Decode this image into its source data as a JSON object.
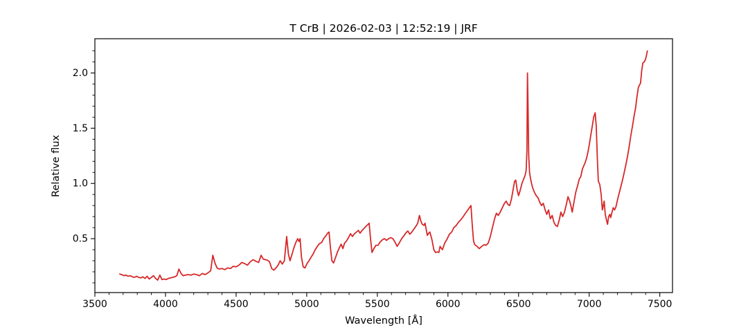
{
  "figure": {
    "background": "#ffffff",
    "spine_color": "#000000",
    "tick_color": "#000000",
    "text_color": "#000000"
  },
  "chart_data": {
    "type": "line",
    "title": "T CrB | 2026-02-03 | 12:52:19 | JRF",
    "xlabel": "Wavelength [Å]",
    "ylabel": "Relative flux",
    "grid": false,
    "legend": null,
    "xlim": [
      3500,
      7590
    ],
    "ylim": [
      0.012,
      2.31
    ],
    "xticks": [
      3500,
      4000,
      4500,
      5000,
      5500,
      6000,
      6500,
      7000,
      7500
    ],
    "xtick_labels": [
      "3500",
      "4000",
      "4500",
      "5000",
      "5500",
      "6000",
      "6500",
      "7000",
      "7500"
    ],
    "yticks": [
      0.5,
      1.0,
      1.5,
      2.0
    ],
    "ytick_labels": [
      "0.5",
      "1.0",
      "1.5",
      "2.0"
    ],
    "x_minor_step": 100,
    "y_minor_step": 0.1,
    "series": [
      {
        "name": "T CrB spectrum",
        "color": "#d62728",
        "line_width": 1.8,
        "points": [
          [
            3676,
            0.18
          ],
          [
            3690,
            0.175
          ],
          [
            3705,
            0.165
          ],
          [
            3720,
            0.17
          ],
          [
            3735,
            0.16
          ],
          [
            3750,
            0.165
          ],
          [
            3765,
            0.155
          ],
          [
            3780,
            0.15
          ],
          [
            3795,
            0.16
          ],
          [
            3810,
            0.15
          ],
          [
            3825,
            0.145
          ],
          [
            3840,
            0.155
          ],
          [
            3855,
            0.14
          ],
          [
            3870,
            0.16
          ],
          [
            3885,
            0.135
          ],
          [
            3900,
            0.15
          ],
          [
            3915,
            0.165
          ],
          [
            3930,
            0.14
          ],
          [
            3945,
            0.125
          ],
          [
            3960,
            0.17
          ],
          [
            3975,
            0.13
          ],
          [
            3990,
            0.135
          ],
          [
            4005,
            0.13
          ],
          [
            4020,
            0.14
          ],
          [
            4035,
            0.145
          ],
          [
            4050,
            0.15
          ],
          [
            4065,
            0.155
          ],
          [
            4080,
            0.165
          ],
          [
            4095,
            0.225
          ],
          [
            4110,
            0.185
          ],
          [
            4125,
            0.165
          ],
          [
            4140,
            0.17
          ],
          [
            4160,
            0.175
          ],
          [
            4180,
            0.17
          ],
          [
            4200,
            0.18
          ],
          [
            4220,
            0.175
          ],
          [
            4240,
            0.165
          ],
          [
            4260,
            0.185
          ],
          [
            4280,
            0.175
          ],
          [
            4300,
            0.19
          ],
          [
            4320,
            0.21
          ],
          [
            4335,
            0.35
          ],
          [
            4350,
            0.28
          ],
          [
            4365,
            0.235
          ],
          [
            4380,
            0.225
          ],
          [
            4400,
            0.23
          ],
          [
            4420,
            0.22
          ],
          [
            4440,
            0.235
          ],
          [
            4460,
            0.23
          ],
          [
            4480,
            0.25
          ],
          [
            4500,
            0.245
          ],
          [
            4520,
            0.26
          ],
          [
            4540,
            0.285
          ],
          [
            4560,
            0.275
          ],
          [
            4580,
            0.26
          ],
          [
            4600,
            0.29
          ],
          [
            4620,
            0.31
          ],
          [
            4640,
            0.295
          ],
          [
            4660,
            0.285
          ],
          [
            4677,
            0.35
          ],
          [
            4692,
            0.315
          ],
          [
            4707,
            0.31
          ],
          [
            4722,
            0.305
          ],
          [
            4737,
            0.29
          ],
          [
            4752,
            0.23
          ],
          [
            4767,
            0.215
          ],
          [
            4782,
            0.235
          ],
          [
            4797,
            0.26
          ],
          [
            4812,
            0.3
          ],
          [
            4827,
            0.27
          ],
          [
            4842,
            0.3
          ],
          [
            4858,
            0.52
          ],
          [
            4870,
            0.36
          ],
          [
            4882,
            0.3
          ],
          [
            4896,
            0.36
          ],
          [
            4910,
            0.42
          ],
          [
            4924,
            0.47
          ],
          [
            4936,
            0.5
          ],
          [
            4945,
            0.475
          ],
          [
            4953,
            0.5
          ],
          [
            4963,
            0.33
          ],
          [
            4975,
            0.245
          ],
          [
            4988,
            0.235
          ],
          [
            5002,
            0.275
          ],
          [
            5016,
            0.3
          ],
          [
            5030,
            0.33
          ],
          [
            5045,
            0.36
          ],
          [
            5060,
            0.4
          ],
          [
            5075,
            0.43
          ],
          [
            5090,
            0.455
          ],
          [
            5105,
            0.465
          ],
          [
            5120,
            0.5
          ],
          [
            5135,
            0.525
          ],
          [
            5148,
            0.55
          ],
          [
            5158,
            0.56
          ],
          [
            5168,
            0.42
          ],
          [
            5178,
            0.3
          ],
          [
            5190,
            0.28
          ],
          [
            5204,
            0.33
          ],
          [
            5218,
            0.38
          ],
          [
            5232,
            0.42
          ],
          [
            5244,
            0.45
          ],
          [
            5256,
            0.41
          ],
          [
            5268,
            0.46
          ],
          [
            5282,
            0.48
          ],
          [
            5296,
            0.51
          ],
          [
            5310,
            0.545
          ],
          [
            5324,
            0.52
          ],
          [
            5338,
            0.545
          ],
          [
            5352,
            0.56
          ],
          [
            5366,
            0.575
          ],
          [
            5378,
            0.55
          ],
          [
            5392,
            0.575
          ],
          [
            5404,
            0.59
          ],
          [
            5418,
            0.61
          ],
          [
            5430,
            0.625
          ],
          [
            5442,
            0.64
          ],
          [
            5452,
            0.5
          ],
          [
            5462,
            0.375
          ],
          [
            5476,
            0.41
          ],
          [
            5490,
            0.44
          ],
          [
            5505,
            0.44
          ],
          [
            5520,
            0.47
          ],
          [
            5535,
            0.49
          ],
          [
            5550,
            0.5
          ],
          [
            5565,
            0.485
          ],
          [
            5580,
            0.5
          ],
          [
            5595,
            0.51
          ],
          [
            5610,
            0.5
          ],
          [
            5625,
            0.47
          ],
          [
            5640,
            0.43
          ],
          [
            5655,
            0.46
          ],
          [
            5672,
            0.5
          ],
          [
            5690,
            0.53
          ],
          [
            5704,
            0.555
          ],
          [
            5716,
            0.57
          ],
          [
            5730,
            0.54
          ],
          [
            5744,
            0.56
          ],
          [
            5758,
            0.585
          ],
          [
            5772,
            0.61
          ],
          [
            5786,
            0.64
          ],
          [
            5798,
            0.71
          ],
          [
            5808,
            0.66
          ],
          [
            5818,
            0.63
          ],
          [
            5830,
            0.62
          ],
          [
            5838,
            0.64
          ],
          [
            5854,
            0.53
          ],
          [
            5864,
            0.55
          ],
          [
            5872,
            0.56
          ],
          [
            5887,
            0.49
          ],
          [
            5900,
            0.4
          ],
          [
            5912,
            0.375
          ],
          [
            5925,
            0.38
          ],
          [
            5936,
            0.375
          ],
          [
            5944,
            0.43
          ],
          [
            5952,
            0.415
          ],
          [
            5961,
            0.4
          ],
          [
            5977,
            0.46
          ],
          [
            5993,
            0.495
          ],
          [
            6010,
            0.54
          ],
          [
            6026,
            0.56
          ],
          [
            6042,
            0.6
          ],
          [
            6059,
            0.62
          ],
          [
            6075,
            0.65
          ],
          [
            6091,
            0.67
          ],
          [
            6108,
            0.7
          ],
          [
            6124,
            0.73
          ],
          [
            6141,
            0.76
          ],
          [
            6157,
            0.79
          ],
          [
            6163,
            0.8
          ],
          [
            6172,
            0.62
          ],
          [
            6181,
            0.48
          ],
          [
            6190,
            0.445
          ],
          [
            6206,
            0.43
          ],
          [
            6222,
            0.41
          ],
          [
            6239,
            0.43
          ],
          [
            6255,
            0.445
          ],
          [
            6270,
            0.44
          ],
          [
            6285,
            0.46
          ],
          [
            6300,
            0.52
          ],
          [
            6315,
            0.6
          ],
          [
            6330,
            0.68
          ],
          [
            6343,
            0.73
          ],
          [
            6356,
            0.71
          ],
          [
            6370,
            0.74
          ],
          [
            6385,
            0.78
          ],
          [
            6400,
            0.82
          ],
          [
            6412,
            0.84
          ],
          [
            6425,
            0.81
          ],
          [
            6437,
            0.8
          ],
          [
            6450,
            0.86
          ],
          [
            6462,
            0.95
          ],
          [
            6472,
            1.02
          ],
          [
            6480,
            1.03
          ],
          [
            6490,
            0.94
          ],
          [
            6500,
            0.89
          ],
          [
            6512,
            0.94
          ],
          [
            6524,
            1.0
          ],
          [
            6536,
            1.04
          ],
          [
            6546,
            1.07
          ],
          [
            6554,
            1.12
          ],
          [
            6559,
            1.3
          ],
          [
            6563,
            2.0
          ],
          [
            6567,
            1.7
          ],
          [
            6572,
            1.25
          ],
          [
            6578,
            1.1
          ],
          [
            6585,
            1.04
          ],
          [
            6592,
            1.0
          ],
          [
            6600,
            0.96
          ],
          [
            6612,
            0.92
          ],
          [
            6625,
            0.89
          ],
          [
            6638,
            0.87
          ],
          [
            6650,
            0.83
          ],
          [
            6662,
            0.8
          ],
          [
            6675,
            0.82
          ],
          [
            6688,
            0.76
          ],
          [
            6700,
            0.72
          ],
          [
            6712,
            0.76
          ],
          [
            6725,
            0.68
          ],
          [
            6738,
            0.71
          ],
          [
            6750,
            0.65
          ],
          [
            6762,
            0.62
          ],
          [
            6775,
            0.61
          ],
          [
            6788,
            0.67
          ],
          [
            6800,
            0.74
          ],
          [
            6812,
            0.7
          ],
          [
            6825,
            0.74
          ],
          [
            6838,
            0.81
          ],
          [
            6850,
            0.88
          ],
          [
            6862,
            0.84
          ],
          [
            6872,
            0.79
          ],
          [
            6880,
            0.74
          ],
          [
            6892,
            0.83
          ],
          [
            6905,
            0.92
          ],
          [
            6918,
            0.98
          ],
          [
            6930,
            1.04
          ],
          [
            6940,
            1.06
          ],
          [
            6952,
            1.13
          ],
          [
            6962,
            1.16
          ],
          [
            6972,
            1.19
          ],
          [
            6982,
            1.23
          ],
          [
            6992,
            1.29
          ],
          [
            7002,
            1.36
          ],
          [
            7012,
            1.44
          ],
          [
            7022,
            1.52
          ],
          [
            7032,
            1.6
          ],
          [
            7042,
            1.64
          ],
          [
            7050,
            1.52
          ],
          [
            7058,
            1.22
          ],
          [
            7065,
            1.02
          ],
          [
            7075,
            0.99
          ],
          [
            7085,
            0.9
          ],
          [
            7093,
            0.76
          ],
          [
            7100,
            0.8
          ],
          [
            7106,
            0.84
          ],
          [
            7114,
            0.72
          ],
          [
            7122,
            0.67
          ],
          [
            7130,
            0.63
          ],
          [
            7138,
            0.7
          ],
          [
            7146,
            0.72
          ],
          [
            7152,
            0.69
          ],
          [
            7160,
            0.73
          ],
          [
            7170,
            0.78
          ],
          [
            7180,
            0.76
          ],
          [
            7190,
            0.79
          ],
          [
            7200,
            0.85
          ],
          [
            7212,
            0.91
          ],
          [
            7224,
            0.97
          ],
          [
            7236,
            1.03
          ],
          [
            7248,
            1.1
          ],
          [
            7260,
            1.17
          ],
          [
            7272,
            1.25
          ],
          [
            7284,
            1.34
          ],
          [
            7296,
            1.44
          ],
          [
            7308,
            1.53
          ],
          [
            7318,
            1.61
          ],
          [
            7328,
            1.68
          ],
          [
            7338,
            1.78
          ],
          [
            7348,
            1.87
          ],
          [
            7356,
            1.89
          ],
          [
            7364,
            1.91
          ],
          [
            7372,
            2.02
          ],
          [
            7380,
            2.09
          ],
          [
            7390,
            2.1
          ],
          [
            7398,
            2.12
          ],
          [
            7404,
            2.15
          ],
          [
            7412,
            2.2
          ]
        ]
      }
    ]
  }
}
